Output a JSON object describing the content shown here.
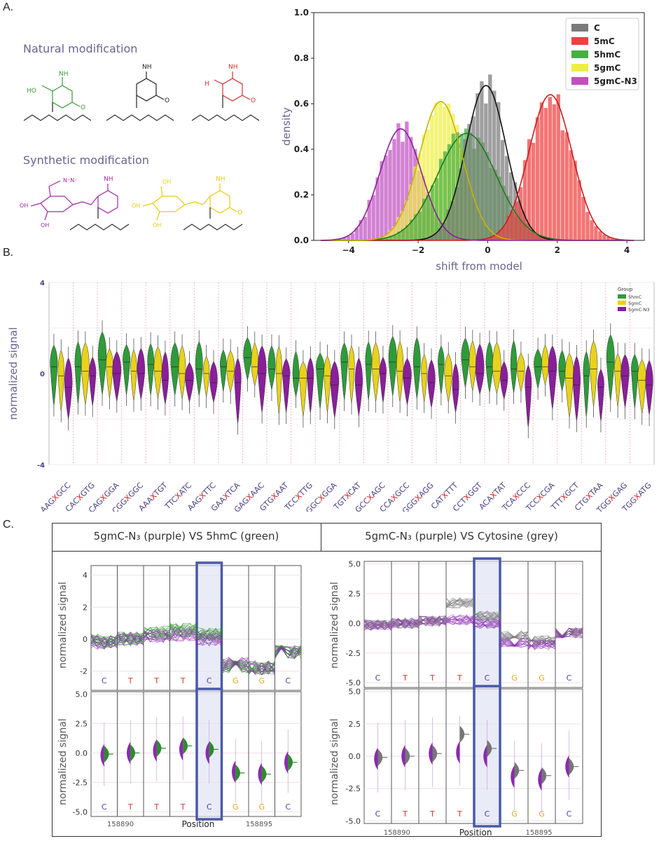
{
  "panels": {
    "a_label": "A.",
    "b_label": "B.",
    "c_label": "C."
  },
  "panel_a": {
    "natural_caption": "Natural modification",
    "synthetic_caption": "Synthetic modification",
    "atom_labels": {
      "nh2": "NH",
      "ho": "HO",
      "h3c": "H",
      "n": "N",
      "o": "O",
      "oh": "OH",
      "azide": "N⁺N⁻"
    }
  },
  "panel_c": {
    "left_title": "5gmC-N₃ (purple) VS 5hmC (green)",
    "right_title": "5gmC-N₃ (purple) VS Cytosine (grey)",
    "bases": [
      "C",
      "T",
      "T",
      "T",
      "C",
      "G",
      "G",
      "C"
    ],
    "base_colors": {
      "C": "#4a3fb0",
      "T": "#d23c2c",
      "G": "#e8a51c"
    },
    "ylabel": "normalized signal",
    "xlabel": "Position",
    "xticks": [
      "158890",
      "158895"
    ],
    "left_top_yticks": [
      "4",
      "2",
      "0",
      "-2"
    ],
    "left_bottom_yticks": [
      "5.0",
      "2.5",
      "0.0",
      "-2.5",
      "-5.0"
    ],
    "right_top_yticks": [
      "5.0",
      "2.5",
      "0.0",
      "-2.5",
      "-5.0"
    ],
    "right_bottom_yticks": [
      "5.0",
      "2.5",
      "0.0",
      "-2.5",
      "-5.0"
    ],
    "colors": {
      "purple": "#8a2bb0",
      "green": "#2e8b2e",
      "grey": "#777777",
      "highlight": "#4a5aa8"
    }
  },
  "chart_data": [
    {
      "type": "histogram",
      "xlabel": "shift from model",
      "ylabel": "density",
      "xlim": [
        -5,
        4.5
      ],
      "ylim": [
        0,
        1.0
      ],
      "xticks": [
        -4,
        -2,
        0,
        2,
        4
      ],
      "yticks": [
        0.0,
        0.2,
        0.4,
        0.6,
        0.8,
        1.0
      ],
      "ytick_labels": [
        "0.0",
        "0.2",
        "0.4",
        "0.6",
        "0.8",
        "1.0"
      ],
      "legend_position": "top-right",
      "series": [
        {
          "name": "C",
          "color": "#7a7a7a",
          "mean": -0.05,
          "sd": 0.58,
          "peak": 0.68
        },
        {
          "name": "5mC",
          "color": "#ee4040",
          "mean": 1.8,
          "sd": 0.62,
          "peak": 0.64
        },
        {
          "name": "5hmC",
          "color": "#44b044",
          "mean": -0.6,
          "sd": 0.85,
          "peak": 0.47
        },
        {
          "name": "5gmC",
          "color": "#eeee44",
          "mean": -1.35,
          "sd": 0.62,
          "peak": 0.61
        },
        {
          "name": "5gmC-N3",
          "color": "#c050c0",
          "mean": -2.5,
          "sd": 0.6,
          "peak": 0.49
        }
      ]
    },
    {
      "type": "violin",
      "ylabel": "normalized signal",
      "ylim": [
        -4,
        4
      ],
      "ytick_labels": [
        "4",
        "0",
        "-4"
      ],
      "legend_title": "Group",
      "legend_position": "top-right",
      "series": [
        {
          "name": "5hmC",
          "color": "#2e9b3a"
        },
        {
          "name": "5gmC",
          "color": "#e8d21c"
        },
        {
          "name": "5gmC-N3",
          "color": "#8a1f9a"
        }
      ],
      "categories": [
        {
          "pre": "AAG",
          "post": "GCC"
        },
        {
          "pre": "CAC",
          "post": "GTG"
        },
        {
          "pre": "CAG",
          "post": "GGA"
        },
        {
          "pre": "CGG",
          "post": "GGC"
        },
        {
          "pre": "AAA",
          "post": "TGT"
        },
        {
          "pre": "TTC",
          "post": "ATC"
        },
        {
          "pre": "AAG",
          "post": "TTC"
        },
        {
          "pre": "GAA",
          "post": "TCA"
        },
        {
          "pre": "GAG",
          "post": "AAC"
        },
        {
          "pre": "GTG",
          "post": "AAT"
        },
        {
          "pre": "TCC",
          "post": "TTG"
        },
        {
          "pre": "GGC",
          "post": "GGA"
        },
        {
          "pre": "TGT",
          "post": "CAT"
        },
        {
          "pre": "GCC",
          "post": "AGC"
        },
        {
          "pre": "CCA",
          "post": "GCC"
        },
        {
          "pre": "GGG",
          "post": "AGG"
        },
        {
          "pre": "CAT",
          "post": "TTT"
        },
        {
          "pre": "CCT",
          "post": "GGT"
        },
        {
          "pre": "ACA",
          "post": "TAT"
        },
        {
          "pre": "TCA",
          "post": "CCC"
        },
        {
          "pre": "TCC",
          "post": "CGA"
        },
        {
          "pre": "TTT",
          "post": "GCT"
        },
        {
          "pre": "CTG",
          "post": "TAA"
        },
        {
          "pre": "TGG",
          "post": "GAG"
        },
        {
          "pre": "TGG",
          "post": "ATG"
        }
      ],
      "marker": "X",
      "medians": {
        "5hmC": [
          0.3,
          0.3,
          0.6,
          0.5,
          0.4,
          0.3,
          0.2,
          0.3,
          0.7,
          0.2,
          -0.2,
          0.2,
          0.5,
          0.4,
          0.5,
          0.3,
          0.4,
          0.6,
          0.3,
          0.2,
          0.3,
          0.1,
          -0.1,
          0.5,
          0.1
        ],
        "5gmC": [
          -0.1,
          0.1,
          0.3,
          0.1,
          0.1,
          0.0,
          0.0,
          0.1,
          0.3,
          0.0,
          -0.2,
          -0.1,
          0.2,
          0.2,
          0.1,
          0.0,
          -0.1,
          0.3,
          0.1,
          0.1,
          0.3,
          -0.2,
          0.2,
          0.1,
          -0.3
        ],
        "5gmC-N3": [
          -0.6,
          -0.1,
          0.0,
          0.0,
          -0.3,
          -0.3,
          -0.4,
          -0.4,
          0.0,
          -0.1,
          -0.2,
          -0.5,
          -0.5,
          0.0,
          -0.2,
          -0.4,
          -0.7,
          0.0,
          -0.3,
          -0.6,
          0.1,
          -0.5,
          -0.6,
          -0.1,
          -0.5
        ]
      }
    }
  ]
}
